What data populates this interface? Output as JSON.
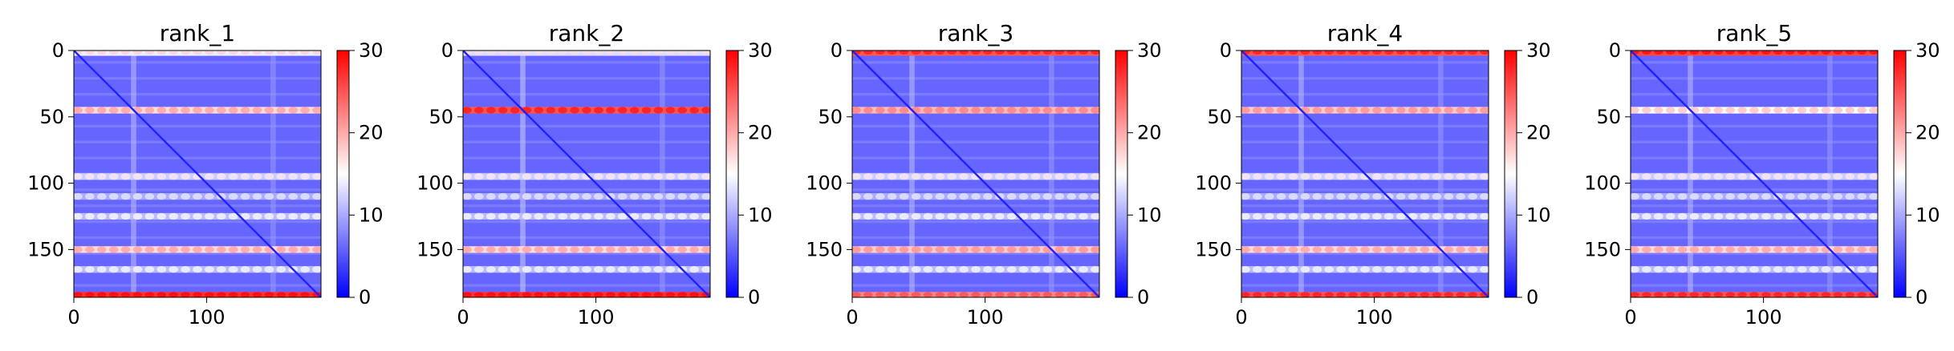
{
  "figure": {
    "colorbar_ticks": [
      "0",
      "10",
      "20",
      "30"
    ],
    "colormap": [
      "#0000ff",
      "#ffffff",
      "#ff0000"
    ]
  },
  "chart_data": [
    {
      "type": "heatmap",
      "title": "rank_1",
      "xlim": [
        0,
        186
      ],
      "ylim": [
        186,
        0
      ],
      "xticks": [
        "0",
        "100"
      ],
      "yticks": [
        "0",
        "50",
        "100",
        "150"
      ],
      "clim": [
        0,
        30
      ],
      "colorbar_ticks": [
        "0",
        "10",
        "20",
        "30"
      ],
      "horizontal_bands": [
        {
          "row": 1,
          "value": 14
        },
        {
          "row": 45,
          "value": 17
        },
        {
          "row": 95,
          "value": 12
        },
        {
          "row": 110,
          "value": 10
        },
        {
          "row": 125,
          "value": 11
        },
        {
          "row": 150,
          "value": 17
        },
        {
          "row": 165,
          "value": 11
        },
        {
          "row": 184,
          "value": 27
        }
      ],
      "vertical_bands": [
        {
          "col": 45,
          "value": 11
        },
        {
          "col": 150,
          "value": 9
        }
      ],
      "diagonal_value": 2,
      "background_value": 6
    },
    {
      "type": "heatmap",
      "title": "rank_2",
      "xlim": [
        0,
        186
      ],
      "ylim": [
        186,
        0
      ],
      "xticks": [
        "0",
        "100"
      ],
      "yticks": [
        "0",
        "50",
        "100",
        "150"
      ],
      "clim": [
        0,
        30
      ],
      "colorbar_ticks": [
        "0",
        "10",
        "20",
        "30"
      ],
      "horizontal_bands": [
        {
          "row": 1,
          "value": 13
        },
        {
          "row": 45,
          "value": 25
        },
        {
          "row": 95,
          "value": 12
        },
        {
          "row": 110,
          "value": 10
        },
        {
          "row": 125,
          "value": 11
        },
        {
          "row": 150,
          "value": 17
        },
        {
          "row": 165,
          "value": 11
        },
        {
          "row": 184,
          "value": 27
        }
      ],
      "vertical_bands": [
        {
          "col": 45,
          "value": 12
        },
        {
          "col": 150,
          "value": 9
        }
      ],
      "diagonal_value": 2,
      "background_value": 6
    },
    {
      "type": "heatmap",
      "title": "rank_3",
      "xlim": [
        0,
        186
      ],
      "ylim": [
        186,
        0
      ],
      "xticks": [
        "0",
        "100"
      ],
      "yticks": [
        "0",
        "50",
        "100",
        "150"
      ],
      "clim": [
        0,
        30
      ],
      "colorbar_ticks": [
        "0",
        "10",
        "20",
        "30"
      ],
      "horizontal_bands": [
        {
          "row": 1,
          "value": 25
        },
        {
          "row": 45,
          "value": 19
        },
        {
          "row": 95,
          "value": 12
        },
        {
          "row": 110,
          "value": 10
        },
        {
          "row": 125,
          "value": 11
        },
        {
          "row": 150,
          "value": 18
        },
        {
          "row": 165,
          "value": 11
        },
        {
          "row": 184,
          "value": 22
        }
      ],
      "vertical_bands": [
        {
          "col": 45,
          "value": 11
        },
        {
          "col": 150,
          "value": 9
        }
      ],
      "diagonal_value": 2,
      "background_value": 6
    },
    {
      "type": "heatmap",
      "title": "rank_4",
      "xlim": [
        0,
        186
      ],
      "ylim": [
        186,
        0
      ],
      "xticks": [
        "0",
        "100"
      ],
      "yticks": [
        "0",
        "50",
        "100",
        "150"
      ],
      "clim": [
        0,
        30
      ],
      "colorbar_ticks": [
        "0",
        "10",
        "20",
        "30"
      ],
      "horizontal_bands": [
        {
          "row": 1,
          "value": 25
        },
        {
          "row": 45,
          "value": 18
        },
        {
          "row": 95,
          "value": 12
        },
        {
          "row": 110,
          "value": 10
        },
        {
          "row": 125,
          "value": 11
        },
        {
          "row": 150,
          "value": 17
        },
        {
          "row": 165,
          "value": 11
        },
        {
          "row": 184,
          "value": 25
        }
      ],
      "vertical_bands": [
        {
          "col": 45,
          "value": 11
        },
        {
          "col": 150,
          "value": 9
        }
      ],
      "diagonal_value": 2,
      "background_value": 6
    },
    {
      "type": "heatmap",
      "title": "rank_5",
      "xlim": [
        0,
        186
      ],
      "ylim": [
        186,
        0
      ],
      "xticks": [
        "0",
        "100"
      ],
      "yticks": [
        "0",
        "50",
        "100",
        "150"
      ],
      "clim": [
        0,
        30
      ],
      "colorbar_ticks": [
        "0",
        "10",
        "20",
        "30"
      ],
      "horizontal_bands": [
        {
          "row": 1,
          "value": 26
        },
        {
          "row": 45,
          "value": 15
        },
        {
          "row": 95,
          "value": 12
        },
        {
          "row": 110,
          "value": 10
        },
        {
          "row": 125,
          "value": 11
        },
        {
          "row": 150,
          "value": 17
        },
        {
          "row": 165,
          "value": 11
        },
        {
          "row": 184,
          "value": 25
        }
      ],
      "vertical_bands": [
        {
          "col": 45,
          "value": 11
        },
        {
          "col": 150,
          "value": 9
        }
      ],
      "diagonal_value": 2,
      "background_value": 6
    }
  ]
}
